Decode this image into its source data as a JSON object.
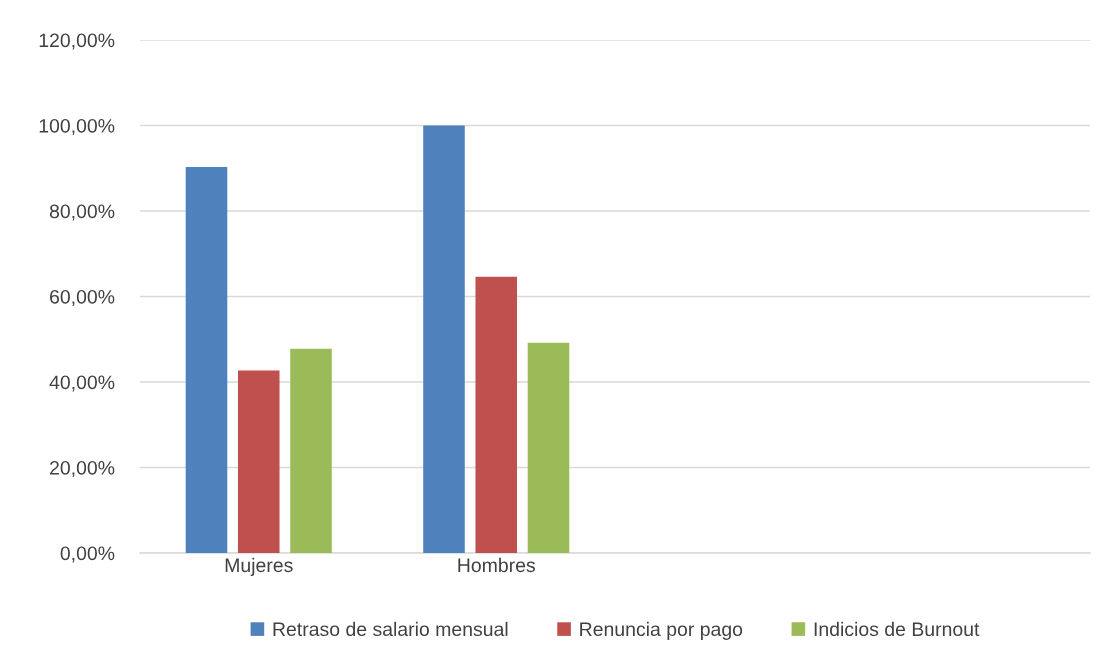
{
  "chart_data": {
    "type": "bar",
    "categories": [
      "Mujeres",
      "Hombres",
      null,
      null
    ],
    "series": [
      {
        "name": "Retraso de salario mensual",
        "color": "#4f81bd",
        "values": [
          90.3,
          100,
          null,
          null
        ]
      },
      {
        "name": "Renuncia por pago",
        "color": "#c0504d",
        "values": [
          42.7,
          64.6,
          null,
          null
        ]
      },
      {
        "name": "Indicios de Burnout",
        "color": "#9bbb59",
        "values": [
          47.8,
          49.2,
          null,
          null
        ]
      }
    ],
    "ylim": [
      0,
      120
    ],
    "yticks": [
      {
        "value": 0,
        "label": "0,00%"
      },
      {
        "value": 20,
        "label": "20,00%"
      },
      {
        "value": 40,
        "label": "40,00%"
      },
      {
        "value": 60,
        "label": "60,00%"
      },
      {
        "value": 80,
        "label": "80,00%"
      },
      {
        "value": 100,
        "label": "100,00%"
      },
      {
        "value": 120,
        "label": "120,00%"
      }
    ],
    "grid": "y",
    "legend": "bottom"
  }
}
